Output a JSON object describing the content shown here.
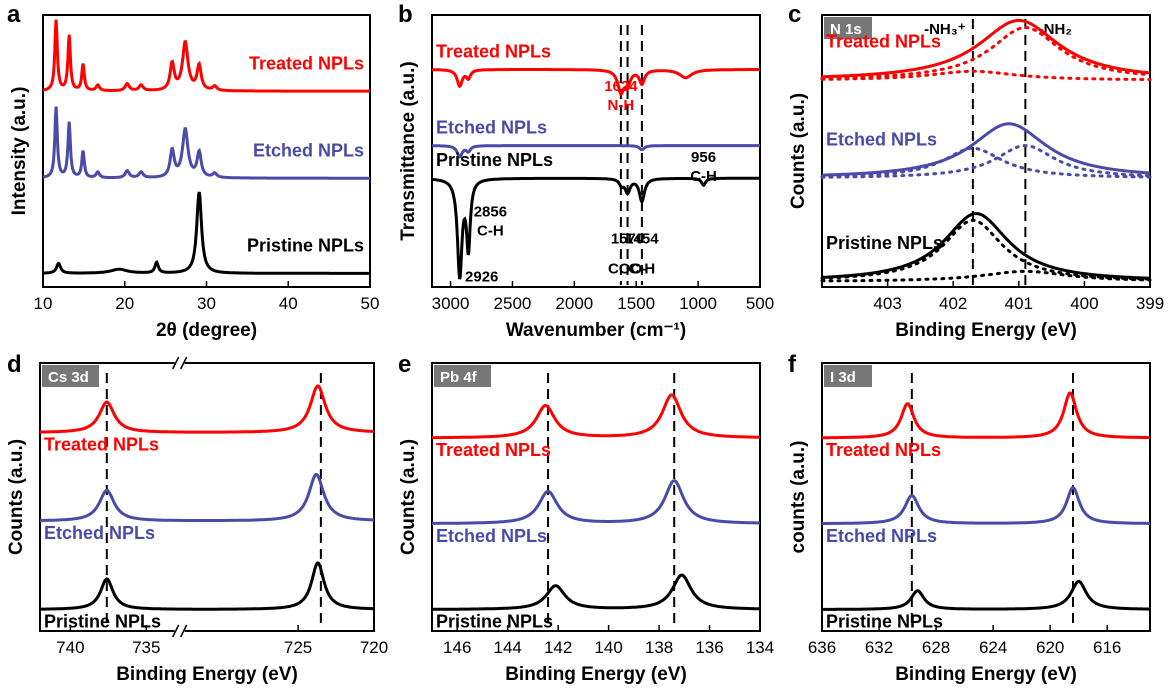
{
  "chart_data": [
    {
      "letter": "a",
      "type": "line",
      "xlabel": "2θ (degree)",
      "ylabel": "Intensity (a.u.)",
      "xlim": [
        10,
        50
      ],
      "reverse_x": false,
      "xticks": [
        10,
        20,
        30,
        40,
        50
      ],
      "xtick_labels": [
        "10",
        "20",
        "30",
        "40",
        "50"
      ],
      "tag": "",
      "series": [
        {
          "name": "Treated NPLs",
          "color": "#ff0000",
          "label_side": "right",
          "offset": 0.72,
          "amp": 0.26,
          "peaks": [
            [
              11.6,
              1.0,
              0.18
            ],
            [
              13.2,
              0.78,
              0.18
            ],
            [
              14.9,
              0.38,
              0.18
            ],
            [
              16.7,
              0.08,
              0.25
            ],
            [
              20.3,
              0.1,
              0.3
            ],
            [
              22.0,
              0.08,
              0.3
            ],
            [
              25.8,
              0.38,
              0.3
            ],
            [
              27.4,
              0.68,
              0.4
            ],
            [
              29.1,
              0.35,
              0.3
            ],
            [
              31.0,
              0.06,
              0.3
            ]
          ]
        },
        {
          "name": "Etched NPLs",
          "color": "#4a4aa8",
          "label_side": "right",
          "offset": 0.4,
          "amp": 0.26,
          "peaks": [
            [
              11.6,
              1.0,
              0.18
            ],
            [
              13.2,
              0.78,
              0.18
            ],
            [
              14.9,
              0.38,
              0.18
            ],
            [
              16.7,
              0.08,
              0.25
            ],
            [
              20.3,
              0.1,
              0.3
            ],
            [
              22.0,
              0.08,
              0.3
            ],
            [
              25.8,
              0.38,
              0.3
            ],
            [
              27.4,
              0.68,
              0.4
            ],
            [
              29.1,
              0.35,
              0.3
            ],
            [
              31.0,
              0.06,
              0.3
            ]
          ]
        },
        {
          "name": "Pristine NPLs",
          "color": "#000000",
          "label_side": "right",
          "offset": 0.05,
          "amp": 0.3,
          "peaks": [
            [
              11.9,
              0.12,
              0.3
            ],
            [
              19.3,
              0.05,
              1.2
            ],
            [
              23.9,
              0.13,
              0.25
            ],
            [
              29.1,
              1.0,
              0.35
            ]
          ]
        }
      ]
    },
    {
      "letter": "b",
      "type": "line",
      "xlabel": "Wavenumber (cm⁻¹)",
      "ylabel": "Transmittance (a.u.)",
      "xlim": [
        3150,
        500
      ],
      "reverse_x": true,
      "xticks": [
        3000,
        2500,
        2000,
        1500,
        1000,
        500
      ],
      "xtick_labels": [
        "3000",
        "2500",
        "2000",
        "1500",
        "1000",
        "500"
      ],
      "tag": "",
      "series": [
        {
          "name": "Treated  NPLs",
          "color": "#ff0000",
          "label_side": "left",
          "offset": 0.8,
          "amp": 0.1,
          "peaks": [
            [
              2926,
              -0.6,
              25
            ],
            [
              2856,
              -0.3,
              20
            ],
            [
              1624,
              -0.8,
              30
            ],
            [
              1570,
              -0.5,
              25
            ],
            [
              1454,
              -0.5,
              25
            ],
            [
              1100,
              -0.3,
              60
            ]
          ]
        },
        {
          "name": "Etched  NPLs",
          "color": "#4a4aa8",
          "label_side": "left",
          "offset": 0.52,
          "amp": 0.05,
          "peaks": [
            [
              2926,
              -0.8,
              25
            ],
            [
              2856,
              -0.4,
              20
            ],
            [
              1454,
              -0.3,
              25
            ]
          ]
        },
        {
          "name": "Pristine  NPLs",
          "color": "#000000",
          "label_side": "left",
          "offset": 0.4,
          "amp": 0.42,
          "peaks": [
            [
              2926,
              -0.85,
              22
            ],
            [
              2856,
              -0.6,
              18
            ],
            [
              1570,
              -0.12,
              25
            ],
            [
              1454,
              -0.2,
              25
            ],
            [
              956,
              -0.06,
              20
            ],
            [
              1620,
              -0.05,
              20
            ]
          ]
        }
      ],
      "annotations": [
        {
          "text": "1624",
          "color": "#ff0000",
          "x": 1624,
          "y": 0.72
        },
        {
          "text": "N-H",
          "color": "#ff0000",
          "x": 1624,
          "y": 0.65
        },
        {
          "text": "956",
          "color": "#000000",
          "x": 956,
          "y": 0.46
        },
        {
          "text": "C-H",
          "color": "#000000",
          "x": 956,
          "y": 0.39
        },
        {
          "text": "2856",
          "color": "#000000",
          "x": 2856,
          "y": 0.26
        },
        {
          "text": "C-H",
          "color": "#000000",
          "x": 2856,
          "y": 0.19
        },
        {
          "text": "2926",
          "color": "#000000",
          "x": 2926,
          "y": 0.02
        },
        {
          "text": "1570",
          "color": "#000000",
          "x": 1570,
          "y": 0.16
        },
        {
          "text": "COO-",
          "color": "#000000",
          "x": 1570,
          "y": 0.05
        },
        {
          "text": "1454",
          "color": "#000000",
          "x": 1454,
          "y": 0.16
        },
        {
          "text": "C-H",
          "color": "#000000",
          "x": 1454,
          "y": 0.05
        }
      ],
      "vlines": [
        1624,
        1570,
        1454
      ]
    },
    {
      "letter": "c",
      "type": "line",
      "xlabel": "Binding Energy (eV)",
      "ylabel": "Counts (a.u.)",
      "xlim": [
        404,
        399
      ],
      "reverse_x": true,
      "xticks": [
        403,
        402,
        401,
        400,
        399
      ],
      "xtick_labels": [
        "403",
        "402",
        "401",
        "400",
        "399"
      ],
      "tag": "N 1s",
      "series": [
        {
          "name": "Treated NPLs",
          "color": "#ff0000",
          "label_side": "left",
          "offset": 0.76,
          "amp": 0.22,
          "peaks": [
            [
              401.0,
              1.0,
              0.75
            ]
          ],
          "fit_peaks": [
            [
              401.7,
              0.15,
              0.8
            ],
            [
              400.9,
              0.88,
              0.65
            ]
          ]
        },
        {
          "name": "Etched NPLs",
          "color": "#4a4aa8",
          "label_side": "left",
          "offset": 0.4,
          "amp": 0.2,
          "peaks": [
            [
              401.15,
              1.0,
              0.7
            ]
          ],
          "fit_peaks": [
            [
              401.7,
              0.55,
              0.55
            ],
            [
              400.9,
              0.6,
              0.55
            ]
          ]
        },
        {
          "name": "Pristine NPLs",
          "color": "#000000",
          "label_side": "left",
          "offset": 0.02,
          "amp": 0.25,
          "peaks": [
            [
              401.65,
              1.0,
              0.6
            ]
          ],
          "fit_peaks": [
            [
              401.7,
              0.9,
              0.55
            ],
            [
              400.9,
              0.15,
              0.8
            ]
          ]
        }
      ],
      "vlines": [
        401.7,
        400.9
      ],
      "top_labels": [
        {
          "text": "-NH₃⁺",
          "x": 401.7
        },
        {
          "text": "-NH₂",
          "x": 400.9
        }
      ]
    },
    {
      "letter": "d",
      "type": "line",
      "xlabel": "Binding Energy (eV)",
      "ylabel": "Counts (a.u.)",
      "xlim": [
        742,
        720
      ],
      "reverse_x": true,
      "xticks": [
        740,
        735,
        725,
        720
      ],
      "xtick_labels": [
        "740",
        "735",
        "725",
        "720"
      ],
      "tag": "Cs 3d",
      "axis_break": [
        733.6,
        732.0
      ],
      "series": [
        {
          "name": "Treated NPLs",
          "color": "#ff0000",
          "label_side": "left",
          "offset": 0.74,
          "amp": 0.12,
          "peaks": [
            [
              737.6,
              0.95,
              0.6
            ],
            [
              723.7,
              1.45,
              0.6
            ]
          ]
        },
        {
          "name": "Etched NPLs",
          "color": "#4a4aa8",
          "label_side": "left",
          "offset": 0.41,
          "amp": 0.12,
          "peaks": [
            [
              737.6,
              0.95,
              0.6
            ],
            [
              723.8,
              1.45,
              0.6
            ]
          ]
        },
        {
          "name": "Pristine NPLs",
          "color": "#000000",
          "label_side": "left",
          "offset": 0.08,
          "amp": 0.12,
          "peaks": [
            [
              737.6,
              0.95,
              0.5
            ],
            [
              723.7,
              1.45,
              0.5
            ]
          ]
        }
      ],
      "vlines": [
        737.6,
        723.5
      ]
    },
    {
      "letter": "e",
      "type": "line",
      "xlabel": "Binding Energy (eV)",
      "ylabel": "Counts (a.u.)",
      "xlim": [
        147,
        134
      ],
      "reverse_x": true,
      "xticks": [
        146,
        144,
        142,
        140,
        138,
        136,
        134
      ],
      "xtick_labels": [
        "146",
        "144",
        "142",
        "140",
        "138",
        "136",
        "134"
      ],
      "tag": "Pb 4f",
      "series": [
        {
          "name": "Treated NPLs",
          "color": "#ff0000",
          "label_side": "left",
          "offset": 0.72,
          "amp": 0.16,
          "peaks": [
            [
              142.5,
              0.75,
              0.45
            ],
            [
              137.5,
              1.0,
              0.45
            ]
          ]
        },
        {
          "name": "Etched NPLs",
          "color": "#4a4aa8",
          "label_side": "left",
          "offset": 0.4,
          "amp": 0.16,
          "peaks": [
            [
              142.4,
              0.75,
              0.45
            ],
            [
              137.4,
              1.0,
              0.45
            ]
          ]
        },
        {
          "name": "Pristine NPLs",
          "color": "#000000",
          "label_side": "left",
          "offset": 0.08,
          "amp": 0.16,
          "peaks": [
            [
              142.1,
              0.55,
              0.45
            ],
            [
              137.1,
              0.8,
              0.45
            ]
          ]
        }
      ],
      "vlines": [
        142.4,
        137.4
      ]
    },
    {
      "letter": "f",
      "type": "line",
      "xlabel": "Binding Energy (eV)",
      "ylabel": "counts (a.u.)",
      "xlim": [
        636,
        613
      ],
      "reverse_x": true,
      "xticks": [
        636,
        632,
        628,
        624,
        620,
        616
      ],
      "xtick_labels": [
        "636",
        "632",
        "628",
        "624",
        "620",
        "616"
      ],
      "tag": "I 3d",
      "series": [
        {
          "name": "Treated NPLs",
          "color": "#ff0000",
          "label_side": "left",
          "offset": 0.72,
          "amp": 0.16,
          "peaks": [
            [
              630.0,
              0.8,
              0.55
            ],
            [
              618.6,
              1.05,
              0.55
            ]
          ]
        },
        {
          "name": "Etched NPLs",
          "color": "#4a4aa8",
          "label_side": "left",
          "offset": 0.4,
          "amp": 0.15,
          "peaks": [
            [
              629.7,
              0.7,
              0.6
            ],
            [
              618.4,
              0.9,
              0.55
            ]
          ]
        },
        {
          "name": "Pristine NPLs",
          "color": "#000000",
          "label_side": "left",
          "offset": 0.08,
          "amp": 0.14,
          "peaks": [
            [
              629.3,
              0.5,
              0.55
            ],
            [
              618.0,
              0.75,
              0.65
            ]
          ]
        }
      ],
      "vlines": [
        629.7,
        618.4
      ]
    }
  ]
}
